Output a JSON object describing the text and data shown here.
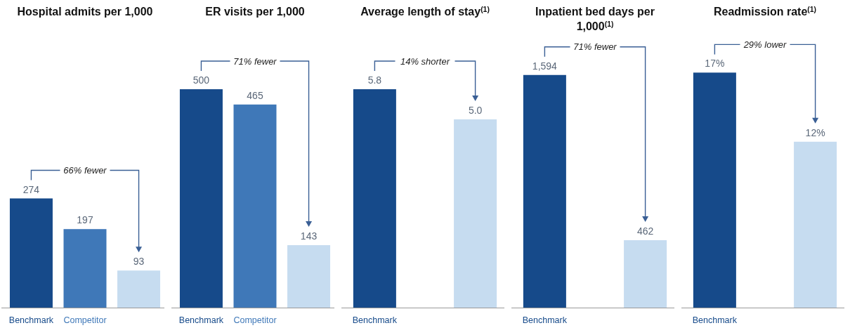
{
  "chart_data": [
    {
      "type": "bar",
      "title": "Hospital admits per 1,000",
      "categories": [
        "Benchmark",
        "Competitor",
        null
      ],
      "values": [
        274,
        197,
        93
      ],
      "value_labels": [
        "274",
        "197",
        "93"
      ],
      "colors": [
        "#164a8a",
        "#3f78b8",
        "#c6dcf0"
      ],
      "annotations": [
        "66% fewer"
      ]
    },
    {
      "type": "bar",
      "title": "ER visits per 1,000",
      "categories": [
        "Benchmark",
        "Competitor",
        null
      ],
      "values": [
        500,
        465,
        143
      ],
      "value_labels": [
        "500",
        "465",
        "143"
      ],
      "colors": [
        "#164a8a",
        "#3f78b8",
        "#c6dcf0"
      ],
      "annotations": [
        "71% fewer"
      ]
    },
    {
      "type": "bar",
      "title": "Average length of stay$^{(1)}$",
      "categories": [
        "Benchmark",
        null
      ],
      "values": [
        5.8,
        5.0
      ],
      "value_labels": [
        "5.8",
        "5.0"
      ],
      "colors": [
        "#164a8a",
        "#c6dcf0"
      ],
      "annotations": [
        "14% shorter"
      ]
    },
    {
      "type": "bar",
      "title": "Inpatient bed days per 1,000$^{(1)}$",
      "categories": [
        "Benchmark",
        null
      ],
      "values": [
        1594,
        462
      ],
      "value_labels": [
        "1,594",
        "462"
      ],
      "colors": [
        "#164a8a",
        "#c6dcf0"
      ],
      "annotations": [
        "71% fewer"
      ]
    },
    {
      "type": "bar",
      "title": "Readmission rate$^{(1)}$",
      "categories": [
        "Benchmark",
        null
      ],
      "values": [
        17,
        12
      ],
      "value_labels": [
        "17%",
        "12%"
      ],
      "colors": [
        "#164a8a",
        "#c6dcf0"
      ],
      "annotations": [
        "29% lower"
      ]
    }
  ]
}
